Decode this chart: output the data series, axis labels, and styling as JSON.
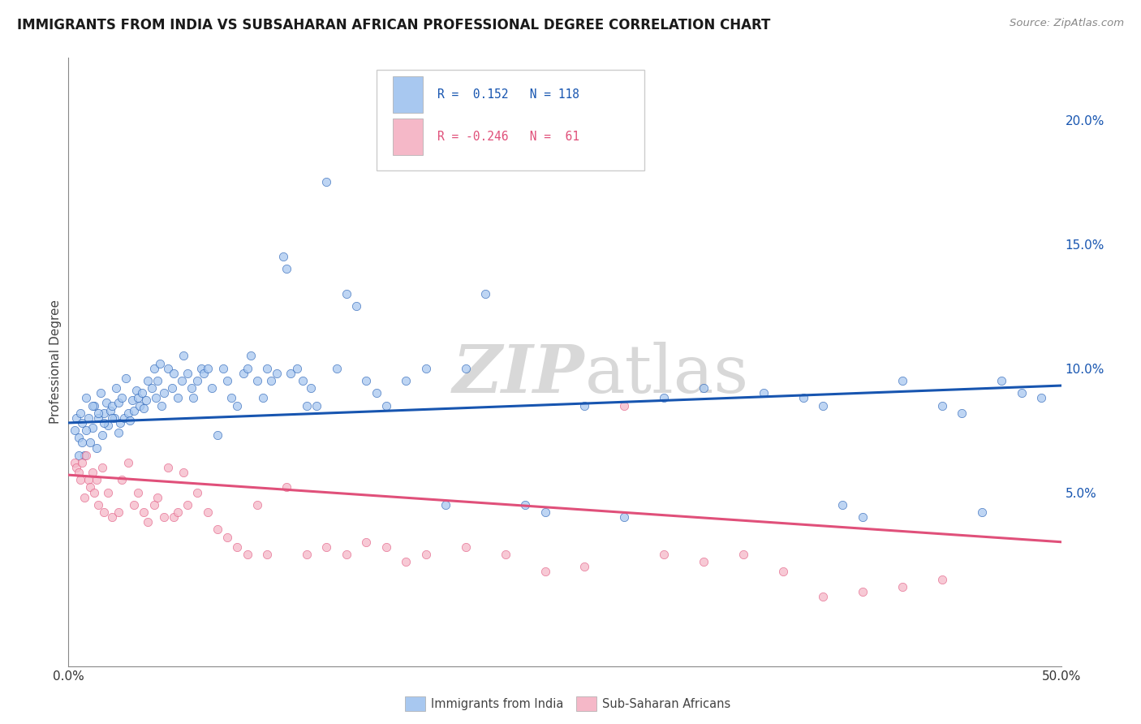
{
  "title": "IMMIGRANTS FROM INDIA VS SUBSAHARAN AFRICAN PROFESSIONAL DEGREE CORRELATION CHART",
  "source": "Source: ZipAtlas.com",
  "ylabel": "Professional Degree",
  "right_yticks": [
    "20.0%",
    "15.0%",
    "10.0%",
    "5.0%"
  ],
  "right_ytick_vals": [
    0.2,
    0.15,
    0.1,
    0.05
  ],
  "xlim": [
    0.0,
    0.5
  ],
  "ylim": [
    -0.02,
    0.225
  ],
  "india_color": "#a8c8f0",
  "africa_color": "#f5b8c8",
  "india_line_color": "#1755b0",
  "africa_line_color": "#e0507a",
  "legend_R_india": "0.152",
  "legend_N_india": "118",
  "legend_R_africa": "-0.246",
  "legend_N_africa": "61",
  "legend_label_india": "Immigrants from India",
  "legend_label_africa": "Sub-Saharan Africans",
  "india_x": [
    0.003,
    0.004,
    0.005,
    0.006,
    0.007,
    0.008,
    0.009,
    0.01,
    0.011,
    0.012,
    0.013,
    0.014,
    0.015,
    0.016,
    0.017,
    0.018,
    0.019,
    0.02,
    0.021,
    0.022,
    0.023,
    0.024,
    0.025,
    0.026,
    0.027,
    0.028,
    0.029,
    0.03,
    0.031,
    0.032,
    0.033,
    0.034,
    0.035,
    0.036,
    0.037,
    0.038,
    0.039,
    0.04,
    0.042,
    0.043,
    0.044,
    0.045,
    0.046,
    0.047,
    0.048,
    0.05,
    0.052,
    0.053,
    0.055,
    0.057,
    0.058,
    0.06,
    0.062,
    0.063,
    0.065,
    0.067,
    0.068,
    0.07,
    0.072,
    0.075,
    0.078,
    0.08,
    0.082,
    0.085,
    0.088,
    0.09,
    0.092,
    0.095,
    0.098,
    0.1,
    0.102,
    0.105,
    0.108,
    0.11,
    0.112,
    0.115,
    0.118,
    0.12,
    0.122,
    0.125,
    0.13,
    0.135,
    0.14,
    0.145,
    0.15,
    0.155,
    0.16,
    0.17,
    0.18,
    0.19,
    0.2,
    0.21,
    0.23,
    0.24,
    0.26,
    0.28,
    0.3,
    0.32,
    0.35,
    0.37,
    0.38,
    0.39,
    0.4,
    0.42,
    0.44,
    0.45,
    0.46,
    0.47,
    0.48,
    0.49,
    0.005,
    0.007,
    0.009,
    0.012,
    0.015,
    0.018,
    0.022,
    0.025
  ],
  "india_y": [
    0.075,
    0.08,
    0.072,
    0.082,
    0.078,
    0.065,
    0.088,
    0.08,
    0.07,
    0.076,
    0.085,
    0.068,
    0.08,
    0.09,
    0.073,
    0.082,
    0.086,
    0.077,
    0.083,
    0.085,
    0.08,
    0.092,
    0.086,
    0.078,
    0.088,
    0.08,
    0.096,
    0.082,
    0.079,
    0.087,
    0.083,
    0.091,
    0.088,
    0.085,
    0.09,
    0.084,
    0.087,
    0.095,
    0.092,
    0.1,
    0.088,
    0.095,
    0.102,
    0.085,
    0.09,
    0.1,
    0.092,
    0.098,
    0.088,
    0.095,
    0.105,
    0.098,
    0.092,
    0.088,
    0.095,
    0.1,
    0.098,
    0.1,
    0.092,
    0.073,
    0.1,
    0.095,
    0.088,
    0.085,
    0.098,
    0.1,
    0.105,
    0.095,
    0.088,
    0.1,
    0.095,
    0.098,
    0.145,
    0.14,
    0.098,
    0.1,
    0.095,
    0.085,
    0.092,
    0.085,
    0.175,
    0.1,
    0.13,
    0.125,
    0.095,
    0.09,
    0.085,
    0.095,
    0.1,
    0.045,
    0.1,
    0.13,
    0.045,
    0.042,
    0.085,
    0.04,
    0.088,
    0.092,
    0.09,
    0.088,
    0.085,
    0.045,
    0.04,
    0.095,
    0.085,
    0.082,
    0.042,
    0.095,
    0.09,
    0.088,
    0.065,
    0.07,
    0.075,
    0.085,
    0.082,
    0.078,
    0.08,
    0.074
  ],
  "africa_x": [
    0.003,
    0.004,
    0.005,
    0.006,
    0.007,
    0.008,
    0.009,
    0.01,
    0.011,
    0.012,
    0.013,
    0.014,
    0.015,
    0.017,
    0.018,
    0.02,
    0.022,
    0.025,
    0.027,
    0.03,
    0.033,
    0.035,
    0.038,
    0.04,
    0.043,
    0.045,
    0.048,
    0.05,
    0.053,
    0.055,
    0.058,
    0.06,
    0.065,
    0.07,
    0.075,
    0.08,
    0.085,
    0.09,
    0.095,
    0.1,
    0.11,
    0.12,
    0.13,
    0.14,
    0.15,
    0.16,
    0.17,
    0.18,
    0.2,
    0.22,
    0.24,
    0.26,
    0.28,
    0.3,
    0.32,
    0.34,
    0.36,
    0.38,
    0.4,
    0.42,
    0.44
  ],
  "africa_y": [
    0.062,
    0.06,
    0.058,
    0.055,
    0.062,
    0.048,
    0.065,
    0.055,
    0.052,
    0.058,
    0.05,
    0.055,
    0.045,
    0.06,
    0.042,
    0.05,
    0.04,
    0.042,
    0.055,
    0.062,
    0.045,
    0.05,
    0.042,
    0.038,
    0.045,
    0.048,
    0.04,
    0.06,
    0.04,
    0.042,
    0.058,
    0.045,
    0.05,
    0.042,
    0.035,
    0.032,
    0.028,
    0.025,
    0.045,
    0.025,
    0.052,
    0.025,
    0.028,
    0.025,
    0.03,
    0.028,
    0.022,
    0.025,
    0.028,
    0.025,
    0.018,
    0.02,
    0.085,
    0.025,
    0.022,
    0.025,
    0.018,
    0.008,
    0.01,
    0.012,
    0.015
  ],
  "india_line_x": [
    0.0,
    0.5
  ],
  "india_line_y": [
    0.078,
    0.093
  ],
  "africa_line_x": [
    0.0,
    0.5
  ],
  "africa_line_y": [
    0.057,
    0.03
  ],
  "background_color": "#ffffff",
  "grid_color": "#dddddd",
  "watermark_color": "#d8d8d8"
}
